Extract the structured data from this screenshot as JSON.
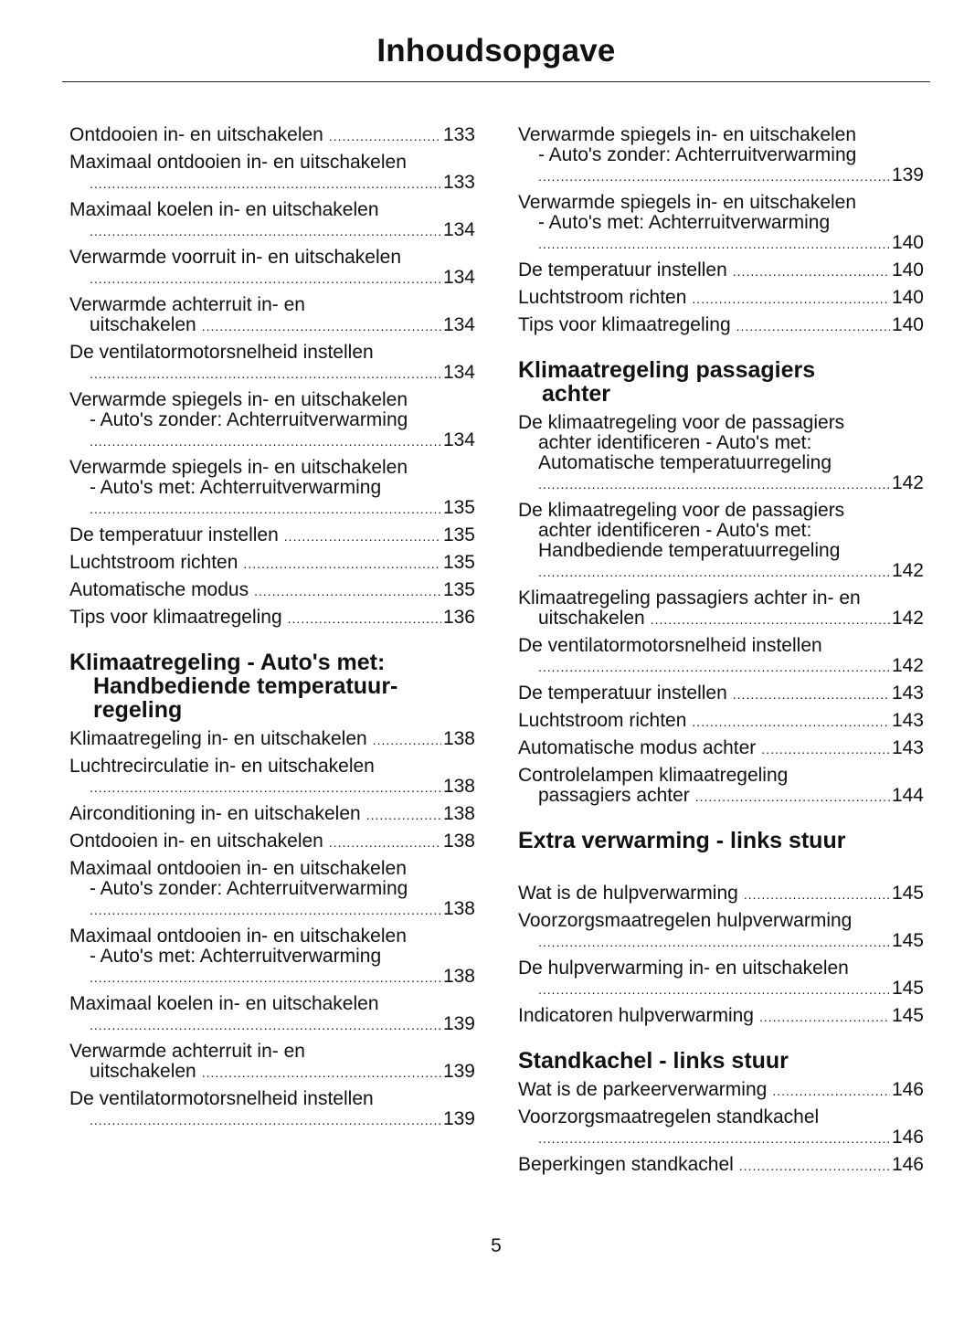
{
  "title": "Inhoudsopgave",
  "page_number": "5",
  "columns": [
    {
      "blocks": [
        {
          "type": "entry",
          "lines": [
            "Ontdooien in- en uitschakelen"
          ],
          "page": "133"
        },
        {
          "type": "entry",
          "lines": [
            "Maximaal ontdooien in- en uitschakelen",
            ""
          ],
          "page": "133"
        },
        {
          "type": "entry",
          "lines": [
            "Maximaal koelen in- en uitschakelen",
            ""
          ],
          "page": "134"
        },
        {
          "type": "entry",
          "lines": [
            "Verwarmde voorruit in- en uitschakelen",
            ""
          ],
          "page": "134"
        },
        {
          "type": "entry",
          "lines": [
            "Verwarmde achterruit in- en",
            "uitschakelen"
          ],
          "page": "134"
        },
        {
          "type": "entry",
          "lines": [
            "De ventilatormotorsnelheid instellen",
            ""
          ],
          "page": "134"
        },
        {
          "type": "entry",
          "lines": [
            "Verwarmde spiegels in- en uitschakelen",
            "- Auto's zonder: Achterruitverwarming",
            ""
          ],
          "page": "134"
        },
        {
          "type": "entry",
          "lines": [
            "Verwarmde spiegels in- en uitschakelen",
            "- Auto's met: Achterruitverwarming",
            ""
          ],
          "page": "135"
        },
        {
          "type": "entry",
          "lines": [
            "De temperatuur instellen"
          ],
          "page": "135"
        },
        {
          "type": "entry",
          "lines": [
            "Luchtstroom richten"
          ],
          "page": "135"
        },
        {
          "type": "entry",
          "lines": [
            "Automatische modus"
          ],
          "page": "135"
        },
        {
          "type": "entry",
          "lines": [
            "Tips voor klimaatregeling"
          ],
          "page": "136"
        },
        {
          "type": "heading",
          "lines": [
            "Klimaatregeling - Auto's met:",
            "Handbediende temperatuur-",
            "regeling"
          ]
        },
        {
          "type": "entry",
          "lines": [
            "Klimaatregeling in- en uitschakelen"
          ],
          "page": "138"
        },
        {
          "type": "entry",
          "lines": [
            "Luchtrecirculatie in- en uitschakelen",
            ""
          ],
          "page": "138"
        },
        {
          "type": "entry",
          "lines": [
            "Airconditioning in- en uitschakelen"
          ],
          "page": "138"
        },
        {
          "type": "entry",
          "lines": [
            "Ontdooien in- en uitschakelen"
          ],
          "page": "138"
        },
        {
          "type": "entry",
          "lines": [
            "Maximaal ontdooien in- en uitschakelen",
            "- Auto's zonder: Achterruitverwarming",
            ""
          ],
          "page": "138"
        },
        {
          "type": "entry",
          "lines": [
            "Maximaal ontdooien in- en uitschakelen",
            "- Auto's met: Achterruitverwarming",
            ""
          ],
          "page": "138"
        },
        {
          "type": "entry",
          "lines": [
            "Maximaal koelen in- en uitschakelen",
            ""
          ],
          "page": "139"
        },
        {
          "type": "entry",
          "lines": [
            "Verwarmde achterruit in- en",
            "uitschakelen"
          ],
          "page": "139"
        },
        {
          "type": "entry",
          "lines": [
            "De ventilatormotorsnelheid instellen",
            ""
          ],
          "page": "139"
        }
      ]
    },
    {
      "blocks": [
        {
          "type": "entry",
          "lines": [
            "Verwarmde spiegels in- en uitschakelen",
            "- Auto's zonder: Achterruitverwarming",
            ""
          ],
          "page": "139"
        },
        {
          "type": "entry",
          "lines": [
            "Verwarmde spiegels in- en uitschakelen",
            "- Auto's met: Achterruitverwarming",
            ""
          ],
          "page": "140"
        },
        {
          "type": "entry",
          "lines": [
            "De temperatuur instellen"
          ],
          "page": "140"
        },
        {
          "type": "entry",
          "lines": [
            "Luchtstroom richten"
          ],
          "page": "140"
        },
        {
          "type": "entry",
          "lines": [
            "Tips voor klimaatregeling"
          ],
          "page": "140"
        },
        {
          "type": "heading",
          "lines": [
            "Klimaatregeling passagiers",
            "achter"
          ]
        },
        {
          "type": "entry",
          "lines": [
            "De klimaatregeling voor de passagiers",
            "achter identificeren - Auto's met:",
            "Automatische temperatuurregeling",
            ""
          ],
          "page": "142"
        },
        {
          "type": "entry",
          "lines": [
            "De klimaatregeling voor de passagiers",
            "achter identificeren - Auto's met:",
            "Handbediende temperatuurregeling",
            ""
          ],
          "page": "142"
        },
        {
          "type": "entry",
          "lines": [
            "Klimaatregeling passagiers achter in- en",
            "uitschakelen"
          ],
          "page": "142"
        },
        {
          "type": "entry",
          "lines": [
            "De ventilatormotorsnelheid instellen",
            ""
          ],
          "page": "142"
        },
        {
          "type": "entry",
          "lines": [
            "De temperatuur instellen"
          ],
          "page": "143"
        },
        {
          "type": "entry",
          "lines": [
            "Luchtstroom richten"
          ],
          "page": "143"
        },
        {
          "type": "entry",
          "lines": [
            "Automatische modus achter"
          ],
          "page": "143"
        },
        {
          "type": "entry",
          "lines": [
            "Controlelampen klimaatregeling",
            "passagiers achter"
          ],
          "page": "144"
        },
        {
          "type": "heading",
          "extra": true,
          "lines": [
            "Extra verwarming - links stuur"
          ]
        },
        {
          "type": "entry",
          "lines": [
            "Wat is de hulpverwarming"
          ],
          "page": "145"
        },
        {
          "type": "entry",
          "lines": [
            "Voorzorgsmaatregelen hulpverwarming",
            ""
          ],
          "page": "145"
        },
        {
          "type": "entry",
          "lines": [
            "De hulpverwarming in- en uitschakelen",
            ""
          ],
          "page": "145"
        },
        {
          "type": "entry",
          "lines": [
            "Indicatoren hulpverwarming"
          ],
          "page": "145"
        },
        {
          "type": "heading",
          "lines": [
            "Standkachel - links stuur"
          ]
        },
        {
          "type": "entry",
          "lines": [
            "Wat is de parkeerverwarming"
          ],
          "page": "146"
        },
        {
          "type": "entry",
          "lines": [
            "Voorzorgsmaatregelen standkachel",
            ""
          ],
          "page": "146"
        },
        {
          "type": "entry",
          "lines": [
            "Beperkingen standkachel"
          ],
          "page": "146"
        }
      ]
    }
  ]
}
